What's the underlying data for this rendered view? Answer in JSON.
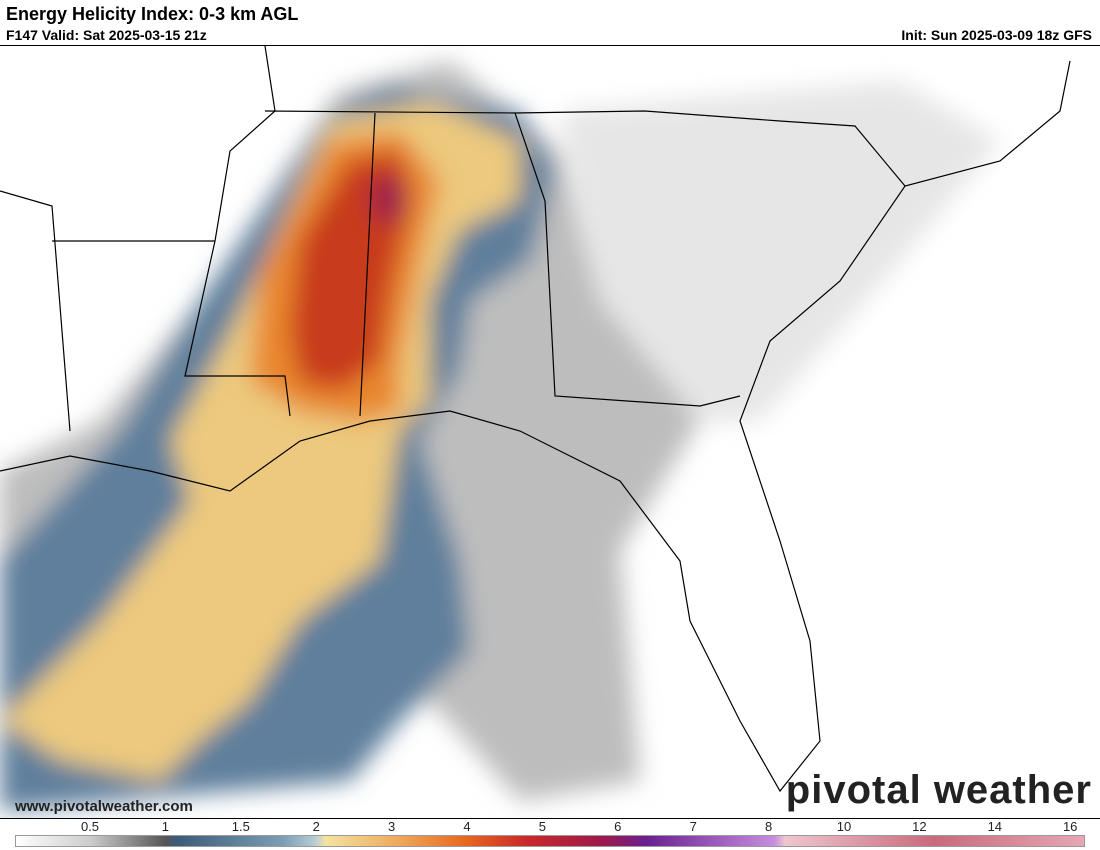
{
  "header": {
    "title": "Energy Helicity Index: 0-3 km AGL",
    "valid": "F147 Valid: Sat 2025-03-15 21z",
    "init": "Init: Sun 2025-03-09 18z GFS"
  },
  "map": {
    "watermark": "www.pivotalweather.com",
    "logo": "pivotal weather"
  },
  "colorbar": {
    "labels": [
      "0.5",
      "1",
      "1.5",
      "2",
      "3",
      "4",
      "5",
      "6",
      "7",
      "8",
      "10",
      "12",
      "14",
      "16"
    ]
  }
}
